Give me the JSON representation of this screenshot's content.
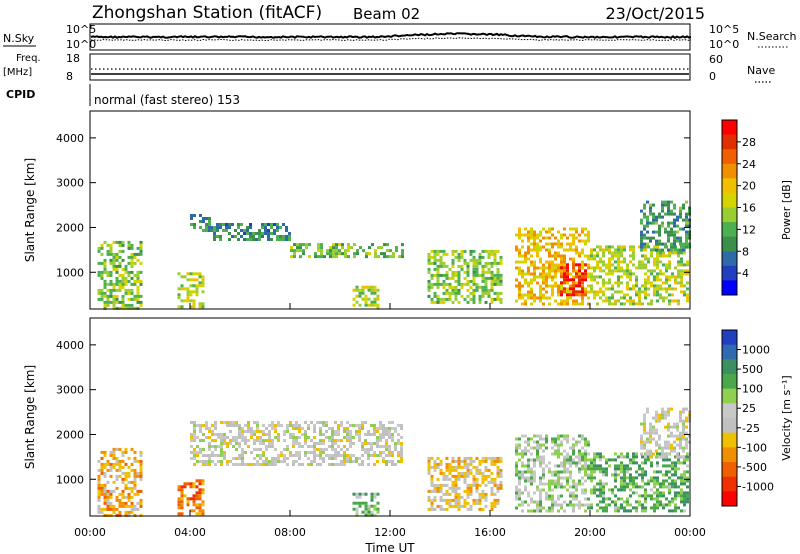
{
  "header": {
    "station": "Zhongshan Station (fitACF)",
    "beam": "Beam 02",
    "date": "23/Oct/2015"
  },
  "noise_panel": {
    "left_label": "N.Sky",
    "right_label": "N.Search",
    "left_ticks": [
      "10^5",
      "10^0"
    ],
    "right_ticks": [
      "10^5",
      "10^0"
    ]
  },
  "freq_panel": {
    "left_label_top": "Freq.",
    "left_label_bottom": "[MHz]",
    "right_label": "Nave",
    "left_ticks": [
      "18",
      "8"
    ],
    "right_ticks": [
      "60",
      "0"
    ]
  },
  "cpid": {
    "label": "CPID",
    "mode": "normal (fast stereo) 153"
  },
  "power_panel": {
    "ylabel": "Slant Range [km]",
    "yticks": [
      "4000",
      "3000",
      "2000",
      "1000"
    ],
    "colorbar_label": "Power [dB]",
    "colorbar_ticks": [
      "28",
      "24",
      "20",
      "16",
      "12",
      "8",
      "4"
    ],
    "colors": [
      "#0000ff",
      "#1f3fbf",
      "#2f6aa8",
      "#3b8f4a",
      "#4caf50",
      "#9acd32",
      "#d4d400",
      "#f0c000",
      "#f09000",
      "#f06000",
      "#e03000",
      "#ff0000"
    ]
  },
  "velocity_panel": {
    "ylabel": "Slant Range [km]",
    "yticks": [
      "4000",
      "3000",
      "2000",
      "1000"
    ],
    "colorbar_label": "Velocity [m s⁻¹]",
    "colorbar_ticks": [
      "1000",
      "500",
      "100",
      "25",
      "-25",
      "-100",
      "-500",
      "-1000"
    ],
    "colors": [
      "#2040c0",
      "#2f6ab0",
      "#3b8f60",
      "#4aa84a",
      "#90d050",
      "#c8c8c8",
      "#c0c0c0",
      "#f0c000",
      "#f09000",
      "#f06000",
      "#f03000",
      "#ff0000"
    ]
  },
  "xaxis": {
    "label": "Time UT",
    "ticks": [
      "00:00",
      "04:00",
      "08:00",
      "12:00",
      "16:00",
      "20:00",
      "00:00"
    ]
  },
  "chart_data": [
    {
      "type": "heatmap",
      "title": "Power",
      "x_range_hours": [
        0,
        24
      ],
      "y_range_km": [
        180,
        4600
      ],
      "value_range_db": [
        0,
        32
      ],
      "regions": [
        {
          "t0": 4.0,
          "t1": 4.8,
          "r0": 1900,
          "r1": 2300,
          "power": 10
        },
        {
          "t0": 4.8,
          "t1": 8.0,
          "r0": 1700,
          "r1": 2100,
          "power": 9
        },
        {
          "t0": 8.0,
          "t1": 12.5,
          "r0": 1350,
          "r1": 1650,
          "power": 13
        },
        {
          "t0": 0.3,
          "t1": 2.0,
          "r0": 200,
          "r1": 1700,
          "power": 14
        },
        {
          "t0": 3.5,
          "t1": 4.5,
          "r0": 200,
          "r1": 1000,
          "power": 16
        },
        {
          "t0": 10.5,
          "t1": 11.5,
          "r0": 200,
          "r1": 700,
          "power": 15
        },
        {
          "t0": 13.5,
          "t1": 16.5,
          "r0": 300,
          "r1": 1500,
          "power": 14
        },
        {
          "t0": 17.0,
          "t1": 20.0,
          "r0": 300,
          "r1": 2000,
          "power": 20
        },
        {
          "t0": 18.8,
          "t1": 19.8,
          "r0": 500,
          "r1": 1200,
          "power": 28
        },
        {
          "t0": 20.0,
          "t1": 23.9,
          "r0": 300,
          "r1": 1600,
          "power": 16
        },
        {
          "t0": 22.0,
          "t1": 24.0,
          "r0": 1500,
          "r1": 2600,
          "power": 10
        }
      ]
    },
    {
      "type": "heatmap",
      "title": "Velocity",
      "x_range_hours": [
        0,
        24
      ],
      "y_range_km": [
        180,
        4600
      ],
      "value_range_ms": [
        -1000,
        1000
      ],
      "regions": [
        {
          "t0": 4.0,
          "t1": 12.5,
          "r0": 1350,
          "r1": 2300,
          "velocity": 0
        },
        {
          "t0": 0.3,
          "t1": 2.0,
          "r0": 200,
          "r1": 1700,
          "velocity": -300
        },
        {
          "t0": 3.5,
          "t1": 4.5,
          "r0": 200,
          "r1": 1000,
          "velocity": -500
        },
        {
          "t0": 10.5,
          "t1": 11.5,
          "r0": 200,
          "r1": 700,
          "velocity": 300
        },
        {
          "t0": 13.5,
          "t1": 16.5,
          "r0": 300,
          "r1": 1500,
          "velocity": -200
        },
        {
          "t0": 17.0,
          "t1": 20.0,
          "r0": 300,
          "r1": 2000,
          "velocity": 200
        },
        {
          "t0": 20.0,
          "t1": 23.9,
          "r0": 300,
          "r1": 1600,
          "velocity": 400
        },
        {
          "t0": 22.0,
          "t1": 24.0,
          "r0": 1500,
          "r1": 2600,
          "velocity": 0
        }
      ]
    }
  ]
}
